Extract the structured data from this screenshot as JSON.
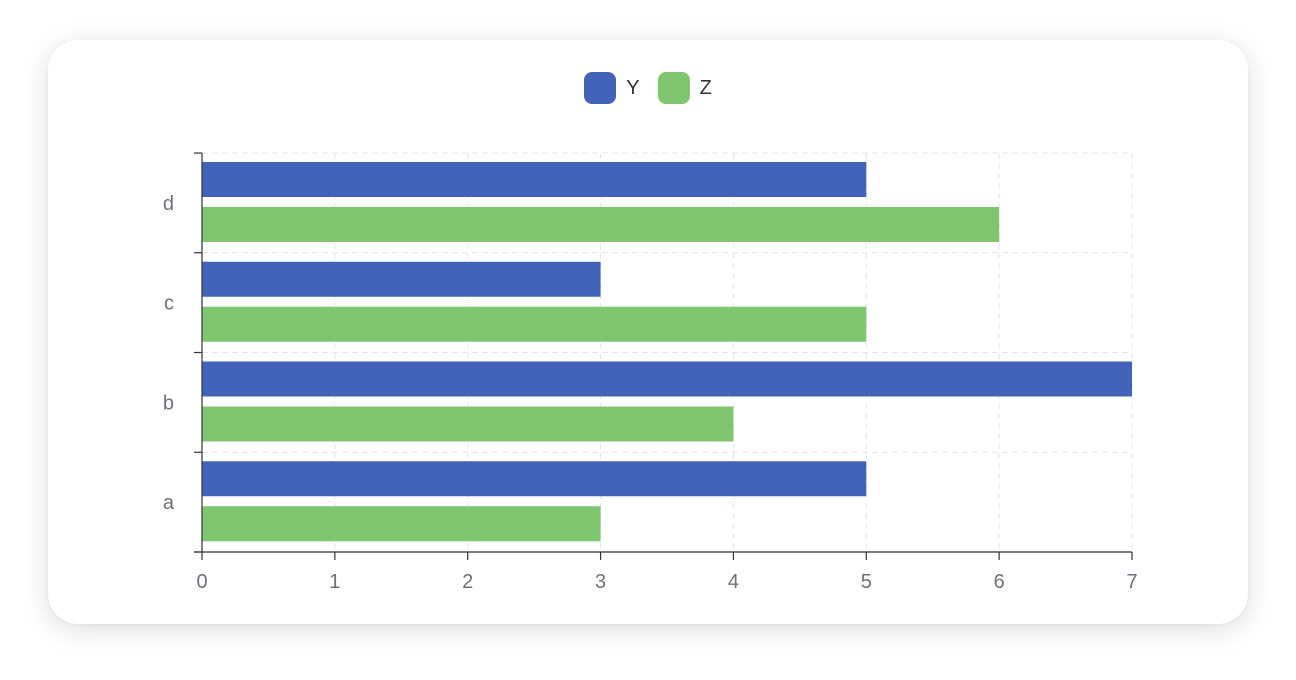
{
  "chart_data": {
    "type": "bar",
    "orientation": "horizontal",
    "categories": [
      "a",
      "b",
      "c",
      "d"
    ],
    "series": [
      {
        "name": "Y",
        "values": [
          5,
          7,
          3,
          5
        ],
        "color": "#4264b8"
      },
      {
        "name": "Z",
        "values": [
          3,
          4,
          5,
          6
        ],
        "color": "#80c56f"
      }
    ],
    "xlim": [
      0,
      7
    ],
    "xticks": [
      "0",
      "1",
      "2",
      "3",
      "4",
      "5",
      "6",
      "7"
    ],
    "grid": true,
    "legend_position": "top-center",
    "title": "",
    "xlabel": "",
    "ylabel": ""
  }
}
